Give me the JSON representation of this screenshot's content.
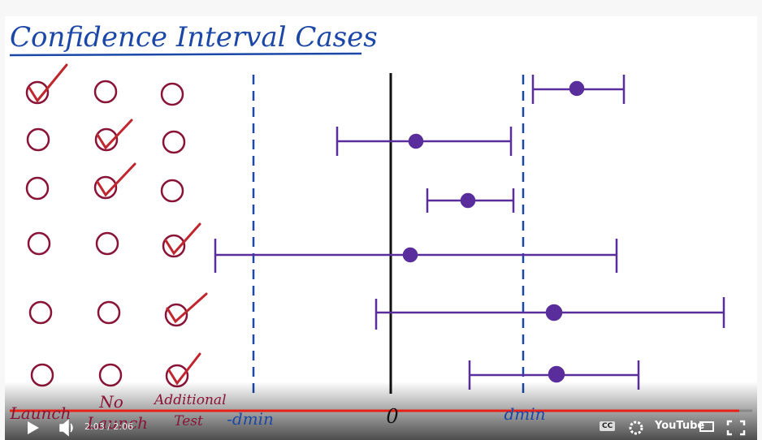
{
  "header": {
    "title": "Confidence Interval Cases"
  },
  "answer_labels": [
    "Launch",
    "No Launch",
    "Additional Test"
  ],
  "axis_labels": [
    "-dmin",
    "0",
    "dmin"
  ],
  "player": {
    "time": "2:03 / 2:06",
    "cc": "CC",
    "logo": "YouTube"
  }
}
